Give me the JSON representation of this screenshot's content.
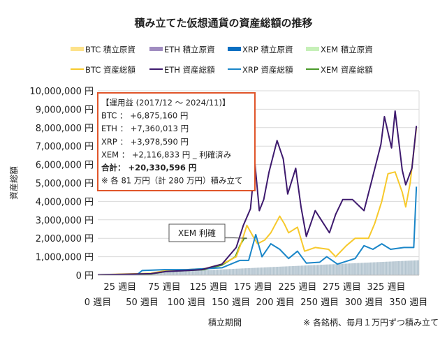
{
  "chart_data": {
    "type": "line",
    "title": "積み立てた仮想通貨の資産総額の推移",
    "xlabel": "積立期間",
    "ylabel": "資産総額",
    "footnote": "※ 各銘柄、毎月１万円ずつ積み立て",
    "xlim": [
      0,
      362
    ],
    "ylim": [
      0,
      10000000
    ],
    "grid": true,
    "legend_position": "top",
    "x_ticks": [
      {
        "week": 0,
        "label": "0 週目"
      },
      {
        "week": 25,
        "label": "25 週目"
      },
      {
        "week": 50,
        "label": "50 週目"
      },
      {
        "week": 75,
        "label": "75 週目"
      },
      {
        "week": 100,
        "label": "100 週目"
      },
      {
        "week": 125,
        "label": "125 週目"
      },
      {
        "week": 150,
        "label": "150 週目"
      },
      {
        "week": 175,
        "label": "175 週目"
      },
      {
        "week": 200,
        "label": "200 週目"
      },
      {
        "week": 225,
        "label": "225 週目"
      },
      {
        "week": 250,
        "label": "250 週目"
      },
      {
        "week": 275,
        "label": "275 週目"
      },
      {
        "week": 300,
        "label": "300 週目"
      },
      {
        "week": 325,
        "label": "325 週目"
      },
      {
        "week": 350,
        "label": "350 週目"
      }
    ],
    "y_ticks": [
      {
        "value": 0,
        "label": "0 円"
      },
      {
        "value": 1000000,
        "label": "1,000,000 円"
      },
      {
        "value": 2000000,
        "label": "2,000,000 円"
      },
      {
        "value": 3000000,
        "label": "3,000,000 円"
      },
      {
        "value": 4000000,
        "label": "4,000,000 円"
      },
      {
        "value": 5000000,
        "label": "5,000,000 円"
      },
      {
        "value": 6000000,
        "label": "6,000,000 円"
      },
      {
        "value": 7000000,
        "label": "7,000,000 円"
      },
      {
        "value": 8000000,
        "label": "8,000,000 円"
      },
      {
        "value": 9000000,
        "label": "9,000,000 円"
      },
      {
        "value": 10000000,
        "label": "10,000,000 円"
      }
    ],
    "legend": [
      {
        "label": "BTC  積立原資",
        "color": "#fde28a",
        "kind": "area"
      },
      {
        "label": "ETH  積立原資",
        "color": "#a08cc0",
        "kind": "area"
      },
      {
        "label": "XRP  積立原資",
        "color": "#0a6fc2",
        "kind": "area"
      },
      {
        "label": "XEM  積立原資",
        "color": "#c6f0b8",
        "kind": "area"
      },
      {
        "label": "BTC  資産総額",
        "color": "#f7c92c",
        "kind": "line"
      },
      {
        "label": "ETH  資産総額",
        "color": "#3e1a6e",
        "kind": "line"
      },
      {
        "label": "XRP  資産総額",
        "color": "#1a86c8",
        "kind": "line"
      },
      {
        "label": "XEM  資産総額",
        "color": "#4a9a2a",
        "kind": "line"
      }
    ],
    "principal_area": {
      "color": "#c5d3dc",
      "points": [
        [
          0,
          0
        ],
        [
          362,
          810000
        ]
      ]
    },
    "series": [
      {
        "name": "BTC  資産総額",
        "color": "#f7c92c",
        "points": [
          [
            0,
            20000
          ],
          [
            30,
            60000
          ],
          [
            60,
            100000
          ],
          [
            77,
            250000
          ],
          [
            100,
            300000
          ],
          [
            120,
            350000
          ],
          [
            140,
            600000
          ],
          [
            156,
            1000000
          ],
          [
            162,
            1800000
          ],
          [
            168,
            2700000
          ],
          [
            175,
            2100000
          ],
          [
            180,
            1700000
          ],
          [
            188,
            1900000
          ],
          [
            195,
            2300000
          ],
          [
            205,
            3200000
          ],
          [
            210,
            2800000
          ],
          [
            215,
            2300000
          ],
          [
            225,
            2600000
          ],
          [
            233,
            1300000
          ],
          [
            245,
            1500000
          ],
          [
            260,
            1400000
          ],
          [
            268,
            1000000
          ],
          [
            280,
            1600000
          ],
          [
            290,
            2000000
          ],
          [
            305,
            2000000
          ],
          [
            312,
            2800000
          ],
          [
            320,
            4000000
          ],
          [
            327,
            5500000
          ],
          [
            335,
            5600000
          ],
          [
            343,
            4500000
          ],
          [
            347,
            3700000
          ],
          [
            352,
            5000000
          ],
          [
            359,
            8000000
          ]
        ]
      },
      {
        "name": "ETH  資産総額",
        "color": "#3e1a6e",
        "points": [
          [
            0,
            20000
          ],
          [
            30,
            50000
          ],
          [
            60,
            80000
          ],
          [
            77,
            200000
          ],
          [
            100,
            250000
          ],
          [
            117,
            300000
          ],
          [
            140,
            600000
          ],
          [
            156,
            1500000
          ],
          [
            164,
            2700000
          ],
          [
            172,
            3600000
          ],
          [
            177,
            6100000
          ],
          [
            182,
            3500000
          ],
          [
            187,
            4100000
          ],
          [
            193,
            5600000
          ],
          [
            202,
            7300000
          ],
          [
            209,
            6300000
          ],
          [
            214,
            4400000
          ],
          [
            223,
            5800000
          ],
          [
            229,
            3700000
          ],
          [
            235,
            2100000
          ],
          [
            245,
            3500000
          ],
          [
            261,
            2300000
          ],
          [
            268,
            3300000
          ],
          [
            276,
            4100000
          ],
          [
            287,
            4100000
          ],
          [
            300,
            3500000
          ],
          [
            308,
            5000000
          ],
          [
            319,
            7100000
          ],
          [
            323,
            8600000
          ],
          [
            331,
            6900000
          ],
          [
            335,
            8900000
          ],
          [
            339,
            7300000
          ],
          [
            343,
            5700000
          ],
          [
            347,
            4900000
          ],
          [
            354,
            5800000
          ],
          [
            359,
            8100000
          ]
        ]
      },
      {
        "name": "XRP  資産総額",
        "color": "#1a86c8",
        "points": [
          [
            0,
            20000
          ],
          [
            45,
            50000
          ],
          [
            50,
            250000
          ],
          [
            75,
            300000
          ],
          [
            100,
            300000
          ],
          [
            140,
            400000
          ],
          [
            160,
            800000
          ],
          [
            170,
            800000
          ],
          [
            178,
            2200000
          ],
          [
            185,
            1000000
          ],
          [
            195,
            1700000
          ],
          [
            205,
            1400000
          ],
          [
            215,
            900000
          ],
          [
            225,
            1300000
          ],
          [
            235,
            650000
          ],
          [
            250,
            700000
          ],
          [
            258,
            1000000
          ],
          [
            270,
            600000
          ],
          [
            290,
            900000
          ],
          [
            300,
            1600000
          ],
          [
            310,
            1400000
          ],
          [
            320,
            1700000
          ],
          [
            330,
            1400000
          ],
          [
            345,
            1500000
          ],
          [
            356,
            1500000
          ],
          [
            359,
            4800000
          ]
        ]
      },
      {
        "name": "XEM  資産総額",
        "color": "#4a9a2a",
        "points": [
          [
            0,
            20000
          ],
          [
            30,
            50000
          ],
          [
            60,
            60000
          ],
          [
            77,
            200000
          ],
          [
            100,
            250000
          ],
          [
            120,
            300000
          ],
          [
            140,
            550000
          ],
          [
            155,
            1000000
          ],
          [
            160,
            1600000
          ],
          [
            165,
            2000000
          ],
          [
            168,
            2000000
          ]
        ]
      }
    ],
    "annotations": {
      "summary_box": {
        "lines": [
          "【運用益 (2017/12 ～ 2024/11)】",
          "BTC ： +6,875,160 円",
          "ETH ： +7,360,013 円",
          "XRP ： +3,978,590 円",
          "XEM ： +2,116,833 円 _ 利確済み",
          "合計： +20,330,596 円",
          "※ 各 81 万円（計 280 万円）積み立て"
        ],
        "border_color": "#e0552a"
      },
      "callout": {
        "label": "XEM 利確",
        "week": 168,
        "value": 2000000
      }
    }
  }
}
